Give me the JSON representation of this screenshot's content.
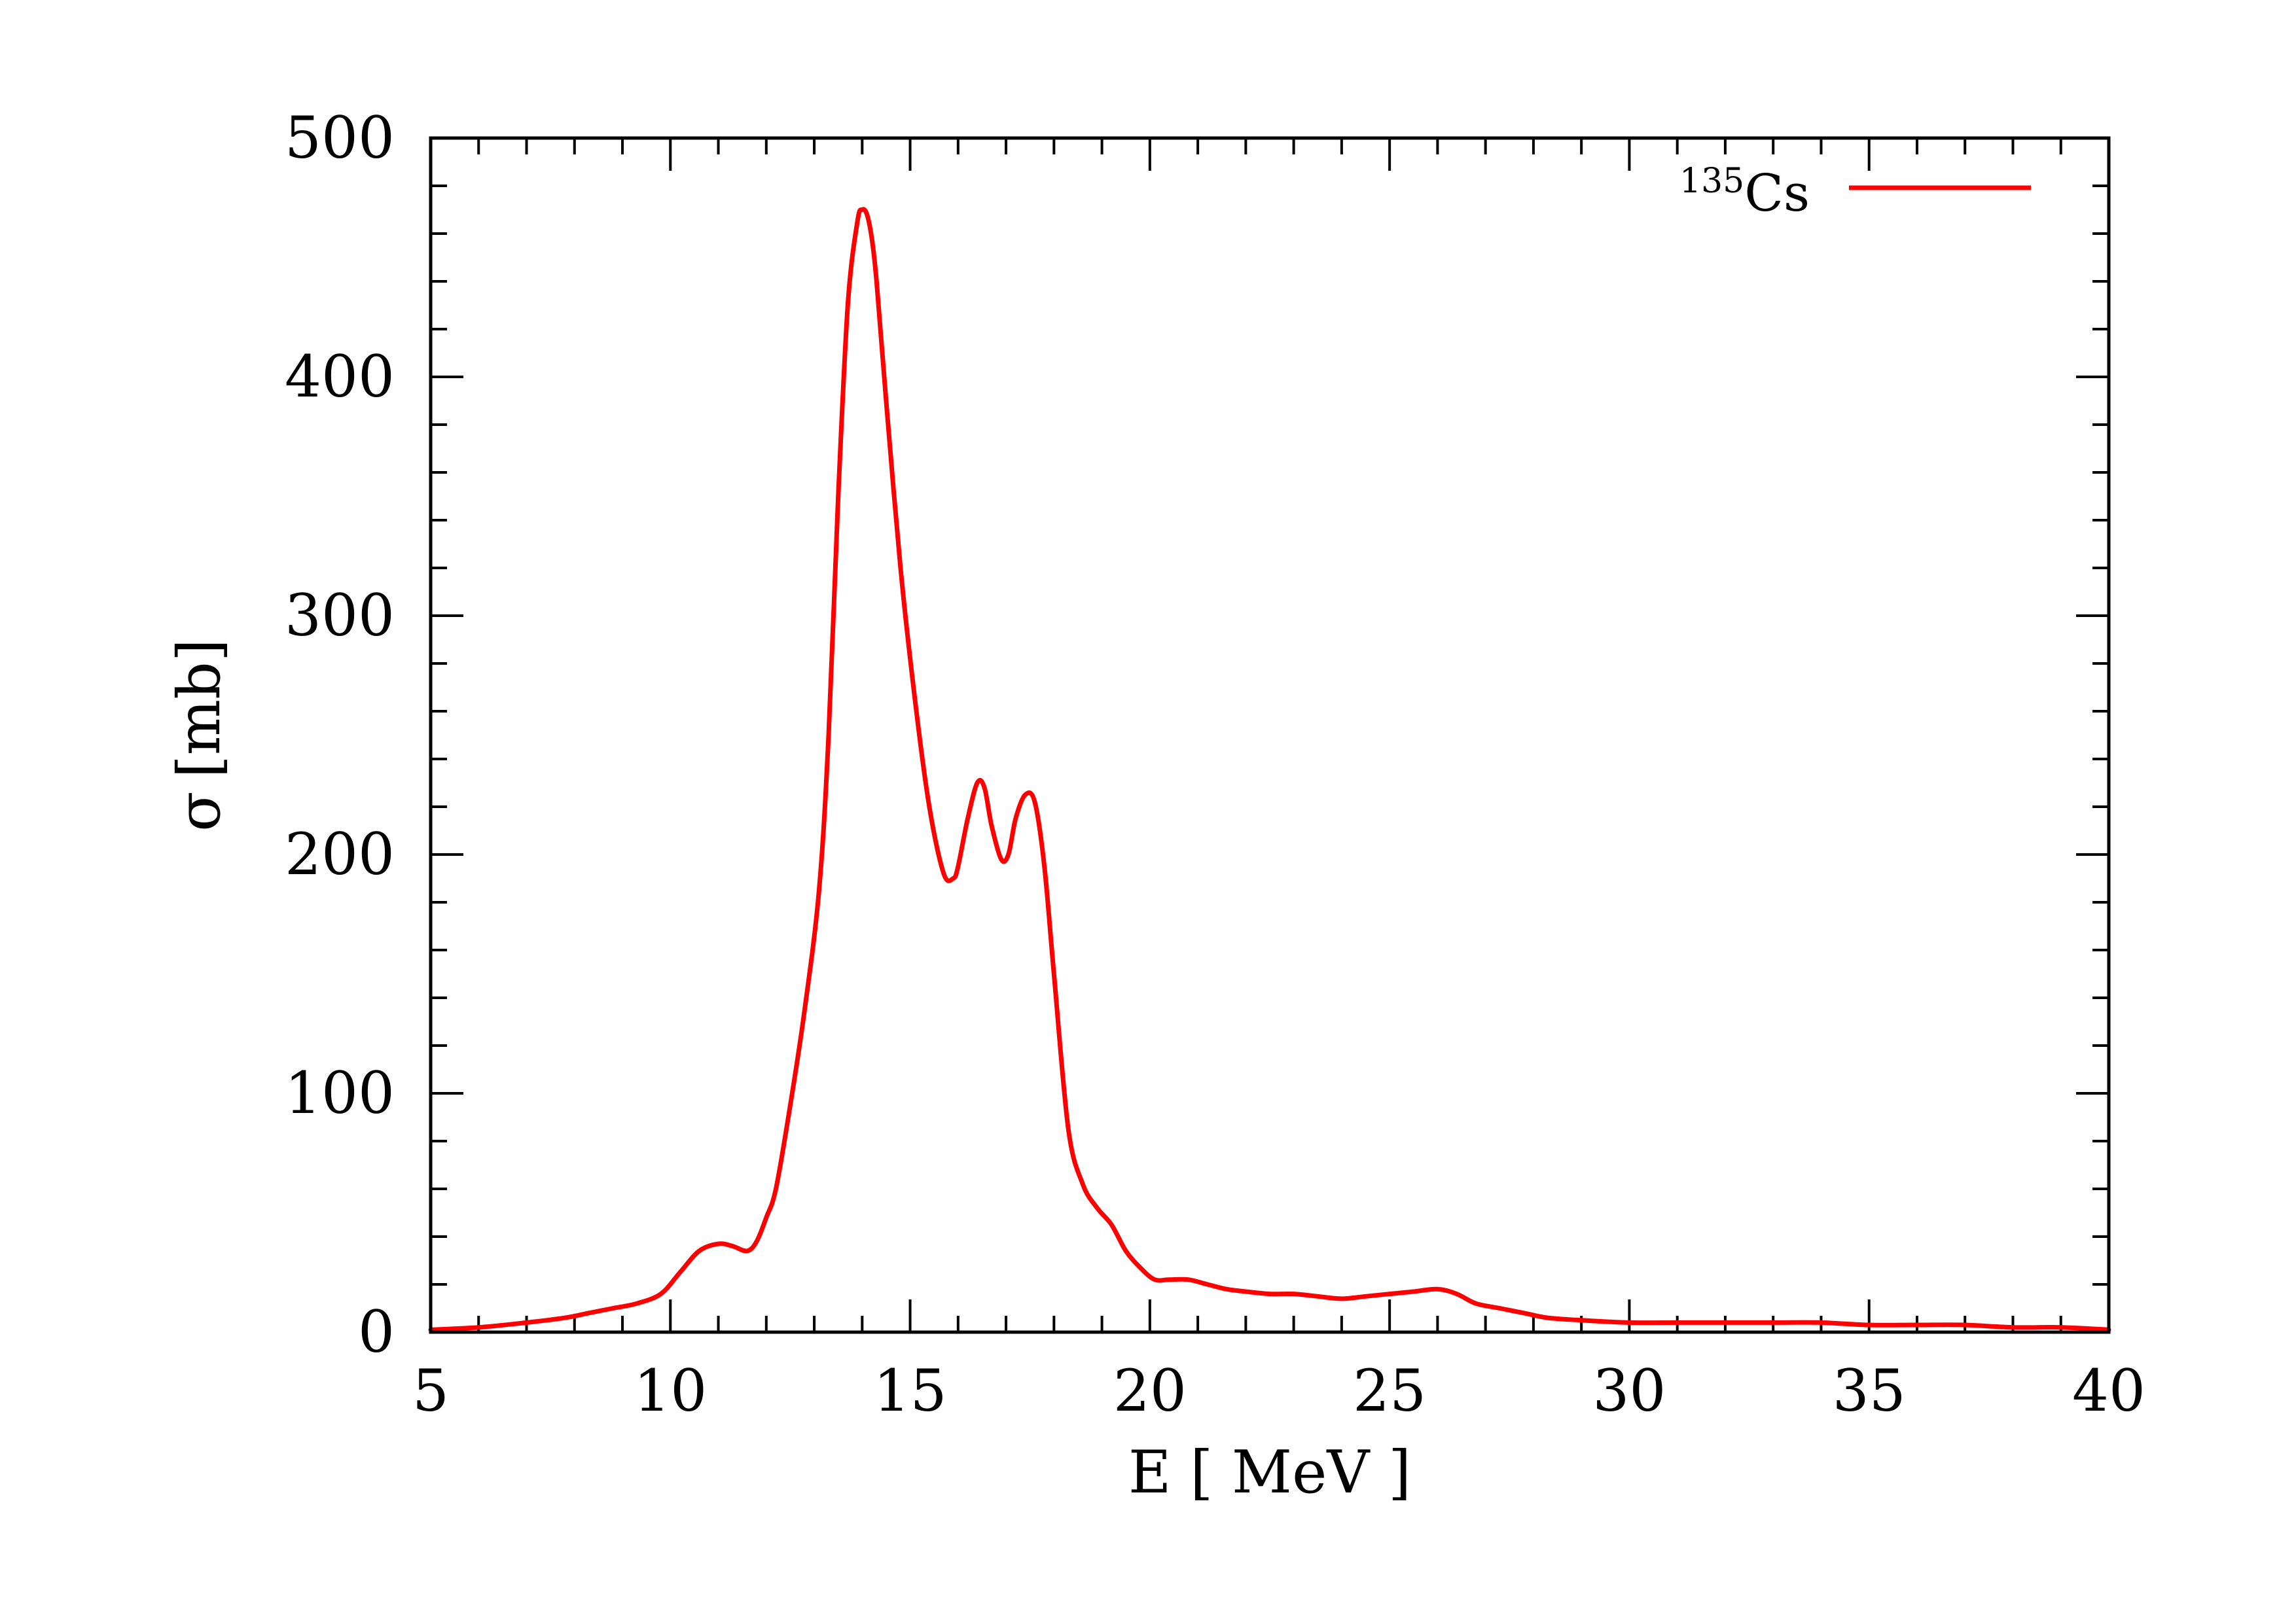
{
  "chart_data": {
    "type": "line",
    "xlabel": "E [ MeV ]",
    "ylabel_symbol": "σ",
    "ylabel_unit": "[mb]",
    "xlim": [
      5,
      40
    ],
    "ylim": [
      0,
      500
    ],
    "x_ticks": [
      5,
      10,
      15,
      20,
      25,
      30,
      35,
      40
    ],
    "y_ticks": [
      0,
      100,
      200,
      300,
      400,
      500
    ],
    "x_minor_step": 1,
    "y_minor_step": 20,
    "grid": false,
    "legend_position": "top-right",
    "colors": {
      "series": "#ff0000",
      "axes": "#000000",
      "background": "#ffffff"
    },
    "series": [
      {
        "name_superscript": "135",
        "name_main": "Cs",
        "color": "#ff0000",
        "x": [
          5.0,
          6.0,
          7.0,
          7.8,
          8.3,
          8.8,
          9.3,
          9.8,
          10.2,
          10.6,
          11.0,
          11.3,
          11.6,
          11.8,
          12.0,
          12.2,
          12.5,
          12.8,
          13.1,
          13.3,
          13.5,
          13.7,
          13.9,
          14.0,
          14.1,
          14.2,
          14.3,
          14.5,
          14.8,
          15.1,
          15.4,
          15.7,
          15.9,
          16.0,
          16.2,
          16.4,
          16.55,
          16.7,
          16.9,
          17.05,
          17.2,
          17.4,
          17.6,
          17.8,
          18.0,
          18.3,
          18.6,
          18.9,
          19.2,
          19.5,
          19.8,
          20.1,
          20.4,
          20.8,
          21.2,
          21.6,
          22.0,
          22.5,
          23.0,
          23.5,
          24.0,
          24.5,
          25.0,
          25.5,
          26.0,
          26.4,
          26.8,
          27.3,
          27.8,
          28.3,
          29.0,
          30.0,
          31.0,
          32.0,
          33.0,
          34.0,
          35.0,
          36.0,
          37.0,
          38.0,
          39.0,
          40.0
        ],
        "y": [
          1,
          2,
          4,
          6,
          8,
          10,
          12,
          16,
          25,
          34,
          37,
          36,
          34,
          38,
          48,
          60,
          95,
          135,
          185,
          250,
          350,
          430,
          465,
          470,
          468,
          458,
          440,
          390,
          320,
          265,
          220,
          192,
          190,
          195,
          215,
          230,
          228,
          212,
          198,
          200,
          215,
          225,
          222,
          195,
          150,
          85,
          62,
          52,
          45,
          34,
          27,
          22,
          22,
          22,
          20,
          18,
          17,
          16,
          16,
          15,
          14,
          15,
          16,
          17,
          18,
          16,
          12,
          10,
          8,
          6,
          5,
          4,
          4,
          4,
          4,
          4,
          3,
          3,
          3,
          2,
          2,
          1
        ]
      }
    ]
  }
}
